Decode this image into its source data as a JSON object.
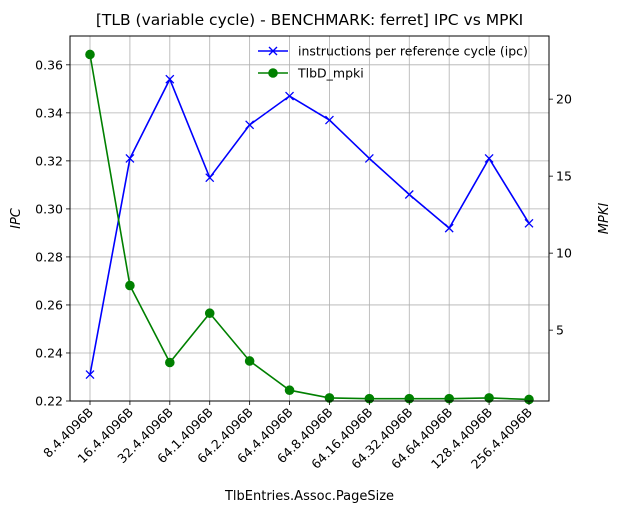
{
  "chart_data": {
    "type": "line",
    "title": "[TLB (variable cycle) - BENCHMARK: ferret]  IPC vs MPKI",
    "xlabel": "TlbEntries.Assoc.PageSize",
    "ylabel_left": "IPC",
    "ylabel_right": "MPKI",
    "categories": [
      "8.4.4096B",
      "16.4.4096B",
      "32.4.4096B",
      "64.1.4096B",
      "64.2.4096B",
      "64.4.4096B",
      "64.8.4096B",
      "64.16.4096B",
      "64.32.4096B",
      "64.64.4096B",
      "128.4.4096B",
      "256.4.4096B"
    ],
    "ylim_left": [
      0.22,
      0.372
    ],
    "ylim_right": [
      0.4,
      24.1
    ],
    "yticks_left": [
      "0.22",
      "0.24",
      "0.26",
      "0.28",
      "0.30",
      "0.32",
      "0.34",
      "0.36"
    ],
    "yticks_left_values": [
      0.22,
      0.24,
      0.26,
      0.28,
      0.3,
      0.32,
      0.34,
      0.36
    ],
    "yticks_right": [
      "5",
      "10",
      "15",
      "20"
    ],
    "yticks_right_values": [
      5,
      10,
      15,
      20
    ],
    "grid": true,
    "legend_position": "top-right",
    "series": [
      {
        "name": "instructions per reference cycle (ipc)",
        "axis": "left",
        "color": "#0000ff",
        "marker": "x",
        "values": [
          0.231,
          0.321,
          0.354,
          0.313,
          0.335,
          0.347,
          0.337,
          0.321,
          0.306,
          0.292,
          0.321,
          0.294
        ]
      },
      {
        "name": "TlbD_mpki",
        "axis": "right",
        "color": "#008000",
        "marker": "o",
        "values": [
          22.9,
          7.9,
          2.9,
          6.1,
          3.0,
          1.1,
          0.6,
          0.55,
          0.55,
          0.55,
          0.6,
          0.5
        ]
      }
    ]
  }
}
